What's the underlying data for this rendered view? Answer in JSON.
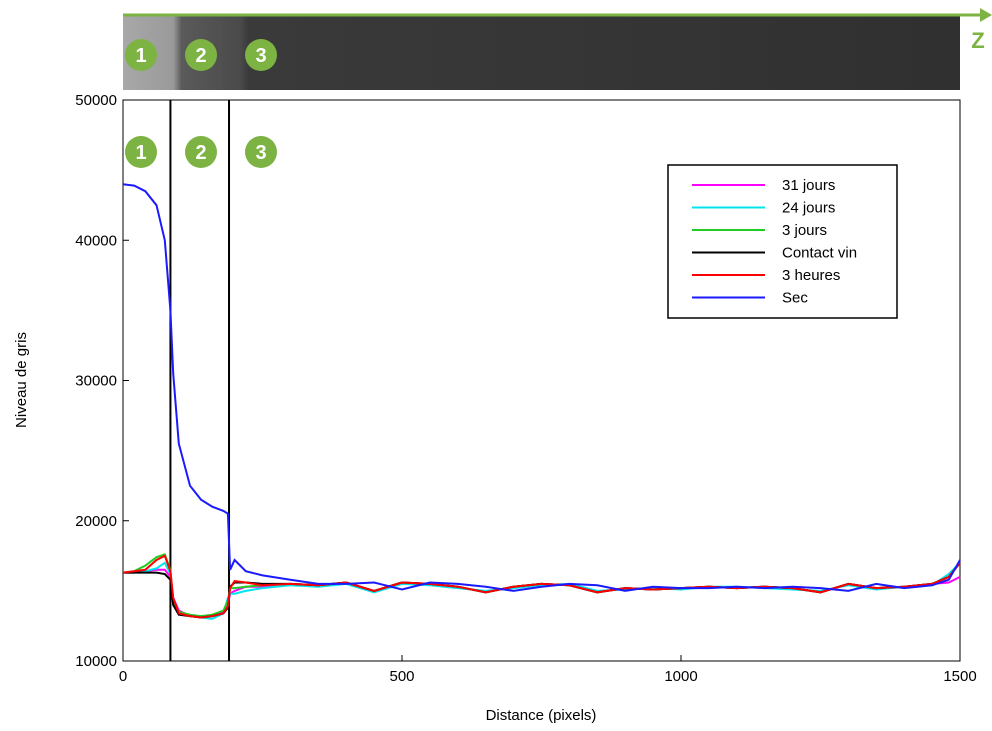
{
  "chart_data": {
    "type": "line",
    "xlabel": "Distance (pixels)",
    "ylabel": "Niveau de gris",
    "axis_arrow_label": "Z",
    "zones": [
      "1",
      "2",
      "3"
    ],
    "boundaries": [
      85,
      190
    ],
    "xlim": [
      0,
      1500
    ],
    "xticks": [
      0,
      500,
      1000,
      1500
    ],
    "ylim": [
      10000,
      50000
    ],
    "yticks": [
      10000,
      20000,
      30000,
      40000,
      50000
    ],
    "legend": "upper right",
    "x": [
      0,
      20,
      40,
      60,
      75,
      85,
      90,
      100,
      120,
      140,
      160,
      180,
      188,
      192,
      200,
      220,
      250,
      300,
      350,
      400,
      450,
      500,
      550,
      600,
      650,
      700,
      750,
      800,
      850,
      900,
      950,
      1000,
      1050,
      1100,
      1150,
      1200,
      1250,
      1300,
      1350,
      1400,
      1450,
      1480,
      1500
    ],
    "series": [
      {
        "name": "31 jours",
        "color": "#ff00ff",
        "values": [
          16300,
          16300,
          16400,
          16500,
          16500,
          16000,
          14500,
          13600,
          13200,
          13100,
          13300,
          13500,
          14000,
          14800,
          15000,
          15300,
          15300,
          15500,
          15400,
          15600,
          15000,
          15600,
          15500,
          15300,
          14900,
          15300,
          15500,
          15400,
          14900,
          15200,
          15100,
          15200,
          15300,
          15200,
          15300,
          15200,
          14900,
          15500,
          15200,
          15300,
          15500,
          15600,
          16000
        ]
      },
      {
        "name": "24 jours",
        "color": "#00e5ee",
        "values": [
          16300,
          16300,
          16400,
          16600,
          17000,
          16200,
          14000,
          13400,
          13300,
          13100,
          13000,
          13400,
          14500,
          14800,
          14800,
          15000,
          15200,
          15400,
          15300,
          15500,
          14900,
          15500,
          15400,
          15200,
          15000,
          15200,
          15400,
          15500,
          15000,
          15100,
          15200,
          15100,
          15300,
          15300,
          15200,
          15100,
          15000,
          15400,
          15100,
          15300,
          15400,
          16200,
          17000
        ]
      },
      {
        "name": "3 jours",
        "color": "#22cc22",
        "values": [
          16300,
          16400,
          16800,
          17400,
          17600,
          16500,
          14200,
          13500,
          13300,
          13200,
          13300,
          13600,
          14300,
          15200,
          15200,
          15300,
          15400,
          15500,
          15400,
          15600,
          15000,
          15600,
          15500,
          15300,
          14900,
          15300,
          15500,
          15400,
          14900,
          15200,
          15100,
          15200,
          15300,
          15200,
          15300,
          15200,
          14900,
          15500,
          15200,
          15300,
          15500,
          16000,
          17000
        ]
      },
      {
        "name": "Contact vin",
        "color": "#000000",
        "values": [
          16300,
          16300,
          16300,
          16300,
          16200,
          15800,
          14000,
          13300,
          13200,
          13100,
          13200,
          13400,
          13800,
          15300,
          15600,
          15600,
          15500,
          15500,
          15400,
          15600,
          15000,
          15600,
          15500,
          15300,
          14900,
          15300,
          15500,
          15400,
          14900,
          15200,
          15100,
          15200,
          15300,
          15200,
          15300,
          15200,
          14900,
          15500,
          15200,
          15300,
          15500,
          16000,
          17000
        ]
      },
      {
        "name": "3 heures",
        "color": "#ff0000",
        "values": [
          16300,
          16400,
          16500,
          17200,
          17500,
          16400,
          14500,
          13400,
          13200,
          13100,
          13200,
          13400,
          13900,
          15200,
          15700,
          15600,
          15400,
          15500,
          15400,
          15600,
          15000,
          15600,
          15500,
          15300,
          14900,
          15300,
          15500,
          15400,
          14900,
          15200,
          15100,
          15200,
          15300,
          15200,
          15300,
          15200,
          14900,
          15500,
          15200,
          15300,
          15500,
          16000,
          17000
        ]
      },
      {
        "name": "Sec",
        "color": "#1a1aff",
        "values": [
          44000,
          43900,
          43500,
          42500,
          40000,
          35000,
          30500,
          25500,
          22500,
          21500,
          21000,
          20700,
          20500,
          16500,
          17200,
          16400,
          16100,
          15800,
          15500,
          15500,
          15600,
          15100,
          15600,
          15500,
          15300,
          15000,
          15300,
          15500,
          15400,
          15000,
          15300,
          15200,
          15200,
          15300,
          15200,
          15300,
          15200,
          15000,
          15500,
          15200,
          15400,
          15800,
          17200
        ]
      }
    ]
  }
}
